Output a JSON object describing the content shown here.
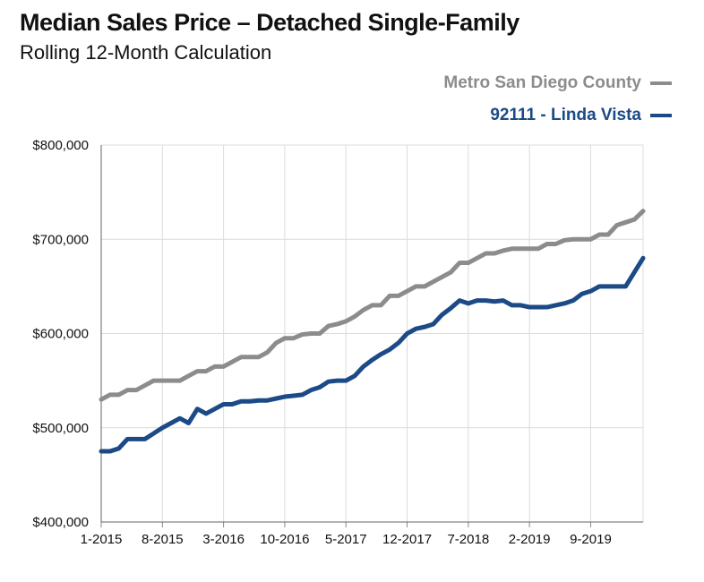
{
  "header": {
    "title": "Median Sales Price – Detached Single-Family",
    "subtitle": "Rolling 12-Month Calculation"
  },
  "colors": {
    "metro": "#8c8c8c",
    "linda": "#1b4a86",
    "grid": "#dcdcdc"
  },
  "chart_data": {
    "type": "line",
    "title": "Median Sales Price – Detached Single-Family",
    "subtitle": "Rolling 12-Month Calculation",
    "xlabel": "",
    "ylabel": "",
    "ylim": [
      400000,
      800000
    ],
    "grid": true,
    "legend_position": "top-right",
    "x_tick_labels": [
      "1-2015",
      "8-2015",
      "3-2016",
      "10-2016",
      "5-2017",
      "12-2017",
      "7-2018",
      "2-2019",
      "9-2019"
    ],
    "y_tick_labels": [
      "$400,000",
      "$500,000",
      "$600,000",
      "$700,000",
      "$800,000"
    ],
    "y_tick_values": [
      400000,
      500000,
      600000,
      700000,
      800000
    ],
    "x": [
      "1-2015",
      "2-2015",
      "3-2015",
      "4-2015",
      "5-2015",
      "6-2015",
      "7-2015",
      "8-2015",
      "9-2015",
      "10-2015",
      "11-2015",
      "12-2015",
      "1-2016",
      "2-2016",
      "3-2016",
      "4-2016",
      "5-2016",
      "6-2016",
      "7-2016",
      "8-2016",
      "9-2016",
      "10-2016",
      "11-2016",
      "12-2016",
      "1-2017",
      "2-2017",
      "3-2017",
      "4-2017",
      "5-2017",
      "6-2017",
      "7-2017",
      "8-2017",
      "9-2017",
      "10-2017",
      "11-2017",
      "12-2017",
      "1-2018",
      "2-2018",
      "3-2018",
      "4-2018",
      "5-2018",
      "6-2018",
      "7-2018",
      "8-2018",
      "9-2018",
      "10-2018",
      "11-2018",
      "12-2018",
      "1-2019",
      "2-2019",
      "3-2019",
      "4-2019",
      "5-2019",
      "6-2019",
      "7-2019",
      "8-2019",
      "9-2019",
      "10-2019",
      "11-2019",
      "12-2019",
      "1-2020",
      "2-2020",
      "3-2020"
    ],
    "series": [
      {
        "name": "Metro San Diego County",
        "values": [
          530000,
          535000,
          535000,
          540000,
          540000,
          545000,
          550000,
          550000,
          550000,
          550000,
          555000,
          560000,
          560000,
          565000,
          565000,
          570000,
          575000,
          575000,
          575000,
          580000,
          590000,
          595000,
          595000,
          599000,
          600000,
          600000,
          608000,
          610000,
          613000,
          618000,
          625000,
          630000,
          630000,
          640000,
          640000,
          645000,
          650000,
          650000,
          655000,
          660000,
          665000,
          675000,
          675000,
          680000,
          685000,
          685000,
          688000,
          690000,
          690000,
          690000,
          690000,
          695000,
          695000,
          699000,
          700000,
          700000,
          700000,
          705000,
          705000,
          715000,
          718000,
          721000,
          730000
        ]
      },
      {
        "name": "92111 - Linda Vista",
        "values": [
          475000,
          475000,
          478000,
          488000,
          488000,
          488000,
          494000,
          500000,
          505000,
          510000,
          505000,
          520000,
          515000,
          520000,
          525000,
          525000,
          528000,
          528000,
          529000,
          529000,
          531000,
          533000,
          534000,
          535000,
          540000,
          543000,
          549000,
          550000,
          550000,
          555000,
          565000,
          572000,
          578000,
          583000,
          590000,
          600000,
          605000,
          607000,
          610000,
          620000,
          627000,
          635000,
          632000,
          635000,
          635000,
          634000,
          635000,
          630000,
          630000,
          628000,
          628000,
          628000,
          630000,
          632000,
          635000,
          642000,
          645000,
          650000,
          650000,
          650000,
          650000,
          665000,
          680000
        ]
      }
    ]
  }
}
